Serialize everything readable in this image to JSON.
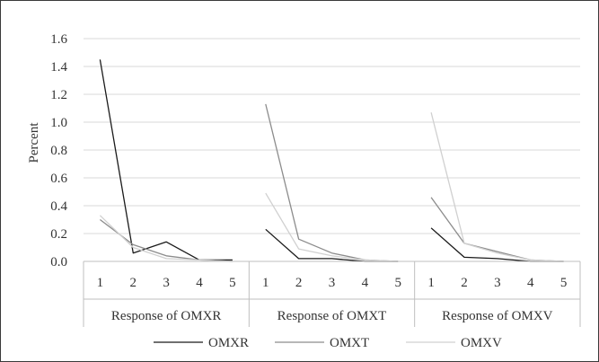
{
  "chart_data": {
    "type": "line",
    "ylabel": "Percent",
    "ylim": [
      0,
      1.6
    ],
    "yticks": [
      "0.0",
      "0.2",
      "0.4",
      "0.6",
      "0.8",
      "1.0",
      "1.2",
      "1.4",
      "1.6"
    ],
    "x": [
      "1",
      "2",
      "3",
      "4",
      "5"
    ],
    "grid": true,
    "legend_position": "bottom",
    "panels": [
      {
        "label": "Response of OMXR",
        "series": [
          {
            "name": "OMXR",
            "values": [
              1.45,
              0.06,
              0.14,
              0.01,
              0.01
            ]
          },
          {
            "name": "OMXT",
            "values": [
              0.3,
              0.12,
              0.04,
              0.01,
              0.0
            ]
          },
          {
            "name": "OMXV",
            "values": [
              0.33,
              0.1,
              0.02,
              0.01,
              0.0
            ]
          }
        ]
      },
      {
        "label": "Response of OMXT",
        "series": [
          {
            "name": "OMXR",
            "values": [
              0.23,
              0.02,
              0.02,
              0.0,
              0.0
            ]
          },
          {
            "name": "OMXT",
            "values": [
              1.13,
              0.16,
              0.06,
              0.01,
              0.0
            ]
          },
          {
            "name": "OMXV",
            "values": [
              0.49,
              0.09,
              0.04,
              0.01,
              0.0
            ]
          }
        ]
      },
      {
        "label": "Response of OMXV",
        "series": [
          {
            "name": "OMXR",
            "values": [
              0.24,
              0.03,
              0.02,
              0.0,
              0.0
            ]
          },
          {
            "name": "OMXT",
            "values": [
              0.46,
              0.13,
              0.07,
              0.01,
              0.0
            ]
          },
          {
            "name": "OMXV",
            "values": [
              1.07,
              0.13,
              0.06,
              0.01,
              0.0
            ]
          }
        ]
      }
    ]
  },
  "colors": {
    "OMXR": "#1a1a1a",
    "OMXT": "#8c8c8c",
    "OMXV": "#d0d0d0",
    "grid": "#d9d9d9",
    "axis": "#bfbfbf"
  }
}
